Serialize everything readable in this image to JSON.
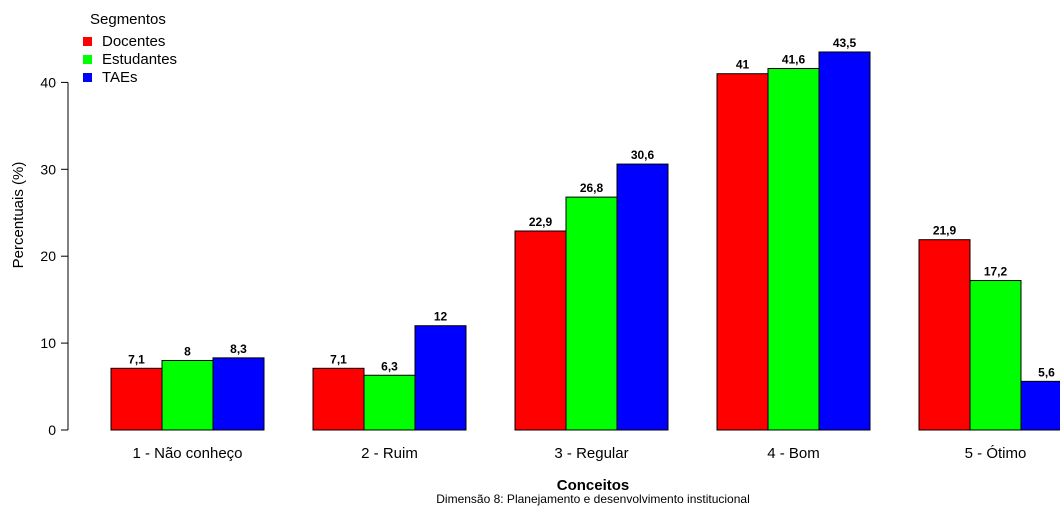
{
  "chart_data": {
    "type": "bar",
    "categories": [
      "1 - Não conheço",
      "2 - Ruim",
      "3 - Regular",
      "4 - Bom",
      "5 - Ótimo"
    ],
    "series": [
      {
        "name": "Docentes",
        "color": "#ff0000",
        "values": [
          7.1,
          7.1,
          22.9,
          41,
          21.9
        ],
        "labels": [
          "7,1",
          "7,1",
          "22,9",
          "41",
          "21,9"
        ]
      },
      {
        "name": "Estudantes",
        "color": "#00ff00",
        "values": [
          8,
          6.3,
          26.8,
          41.6,
          17.2
        ],
        "labels": [
          "8",
          "6,3",
          "26,8",
          "41,6",
          "17,2"
        ]
      },
      {
        "name": "TAEs",
        "color": "#0000ff",
        "values": [
          8.3,
          12,
          30.6,
          43.5,
          5.6
        ],
        "labels": [
          "8,3",
          "12",
          "30,6",
          "43,5",
          "5,6"
        ]
      }
    ],
    "legend_title": "Segmentos",
    "legend_position": "top-left",
    "xlabel": "Conceitos",
    "subtitle": "Dimensão 8: Planejamento e desenvolvimento institucional",
    "ylabel": "Percentuais (%)",
    "yticks": [
      0,
      10,
      20,
      30,
      40
    ],
    "ylim": [
      0,
      45
    ],
    "grid": false
  }
}
